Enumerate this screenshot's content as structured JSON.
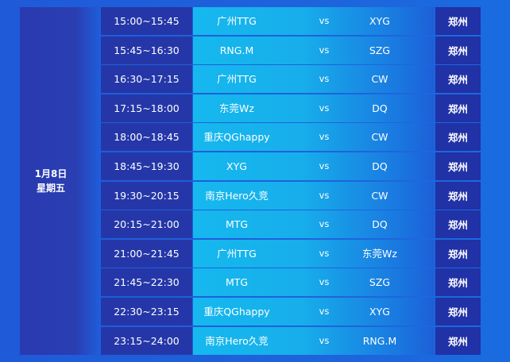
{
  "date": {
    "day": "1月8日",
    "weekday": "星期五"
  },
  "vs_label": "vs",
  "matches": [
    {
      "time": "15:00~15:45",
      "team1": "广州TTG",
      "team2": "XYG",
      "venue": "郑州"
    },
    {
      "time": "15:45~16:30",
      "team1": "RNG.M",
      "team2": "SZG",
      "venue": "郑州"
    },
    {
      "time": "16:30~17:15",
      "team1": "广州TTG",
      "team2": "CW",
      "venue": "郑州"
    },
    {
      "time": "17:15~18:00",
      "team1": "东莞Wz",
      "team2": "DQ",
      "venue": "郑州"
    },
    {
      "time": "18:00~18:45",
      "team1": "重庆QGhappy",
      "team2": "CW",
      "venue": "郑州"
    },
    {
      "time": "18:45~19:30",
      "team1": "XYG",
      "team2": "DQ",
      "venue": "郑州"
    },
    {
      "time": "19:30~20:15",
      "team1": "南京Hero久竞",
      "team2": "CW",
      "venue": "郑州"
    },
    {
      "time": "20:15~21:00",
      "team1": "MTG",
      "team2": "DQ",
      "venue": "郑州"
    },
    {
      "time": "21:00~21:45",
      "team1": "广州TTG",
      "team2": "东莞Wz",
      "venue": "郑州"
    },
    {
      "time": "21:45~22:30",
      "team1": "MTG",
      "team2": "SZG",
      "venue": "郑州"
    },
    {
      "time": "22:30~23:15",
      "team1": "重庆QGhappy",
      "team2": "XYG",
      "venue": "郑州"
    },
    {
      "time": "23:15~24:00",
      "team1": "南京Hero久竞",
      "team2": "RNG.M",
      "venue": "郑州"
    }
  ]
}
